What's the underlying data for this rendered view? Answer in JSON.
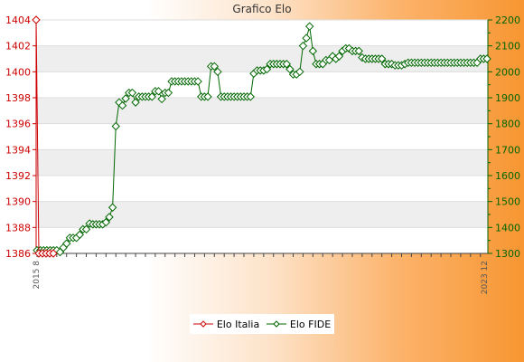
{
  "chart_data": {
    "type": "line",
    "title": "Grafico Elo",
    "xlabel": "",
    "ylabel": "",
    "x_tick_labels_note": "",
    "y_left": {
      "ticks": [
        "1386",
        "1388",
        "1390",
        "1392",
        "1394",
        "1396",
        "1398",
        "1400",
        "1402",
        "1404"
      ],
      "range": [
        1386,
        1404
      ],
      "color": "#cc0000"
    },
    "y_right": {
      "ticks": [
        "1300",
        "1400",
        "1500",
        "1600",
        "1700",
        "1800",
        "1900",
        "2000",
        "2100",
        "2200"
      ],
      "range": [
        1300,
        2200
      ],
      "color": "#006600"
    },
    "x_first_label": "2015 8",
    "x_last_label": "2023 12",
    "legend": {
      "placement": "bottom-center",
      "entries": [
        "Elo Italia",
        "Elo FIDE"
      ]
    },
    "colors": {
      "italia": "#cc0000",
      "fide": "#006600",
      "band": "#eeeeee",
      "grid": "#dddddd"
    },
    "series": [
      {
        "name": "Elo Italia",
        "axis": "left",
        "values": [
          1404,
          1386,
          1386,
          1386,
          1386,
          1386
        ]
      },
      {
        "name": "Elo FIDE",
        "axis": "right",
        "values": [
          1312,
          1312,
          1312,
          1312,
          1312,
          1312,
          1312,
          1305,
          1322,
          1338,
          1360,
          1360,
          1360,
          1372,
          1393,
          1393,
          1415,
          1412,
          1412,
          1412,
          1412,
          1420,
          1440,
          1477,
          1790,
          1882,
          1870,
          1897,
          1919,
          1919,
          1882,
          1904,
          1904,
          1904,
          1904,
          1904,
          1925,
          1925,
          1895,
          1919,
          1919,
          1963,
          1963,
          1963,
          1963,
          1963,
          1963,
          1963,
          1963,
          1963,
          1904,
          1904,
          1904,
          2021,
          2021,
          2000,
          1904,
          1904,
          1904,
          1904,
          1904,
          1904,
          1904,
          1904,
          1904,
          1904,
          1993,
          2005,
          2005,
          2005,
          2010,
          2030,
          2030,
          2030,
          2030,
          2030,
          2030,
          2010,
          1990,
          1990,
          2000,
          2100,
          2130,
          2175,
          2080,
          2030,
          2030,
          2030,
          2045,
          2045,
          2060,
          2050,
          2060,
          2080,
          2090,
          2090,
          2080,
          2080,
          2080,
          2055,
          2050,
          2050,
          2050,
          2050,
          2050,
          2050,
          2030,
          2030,
          2030,
          2025,
          2025,
          2025,
          2030,
          2035,
          2035,
          2035,
          2035,
          2035,
          2035,
          2035,
          2035,
          2035,
          2035,
          2035,
          2035,
          2035,
          2035,
          2035,
          2035,
          2035,
          2035,
          2035,
          2035,
          2035,
          2035,
          2050,
          2050,
          2050
        ]
      }
    ]
  }
}
